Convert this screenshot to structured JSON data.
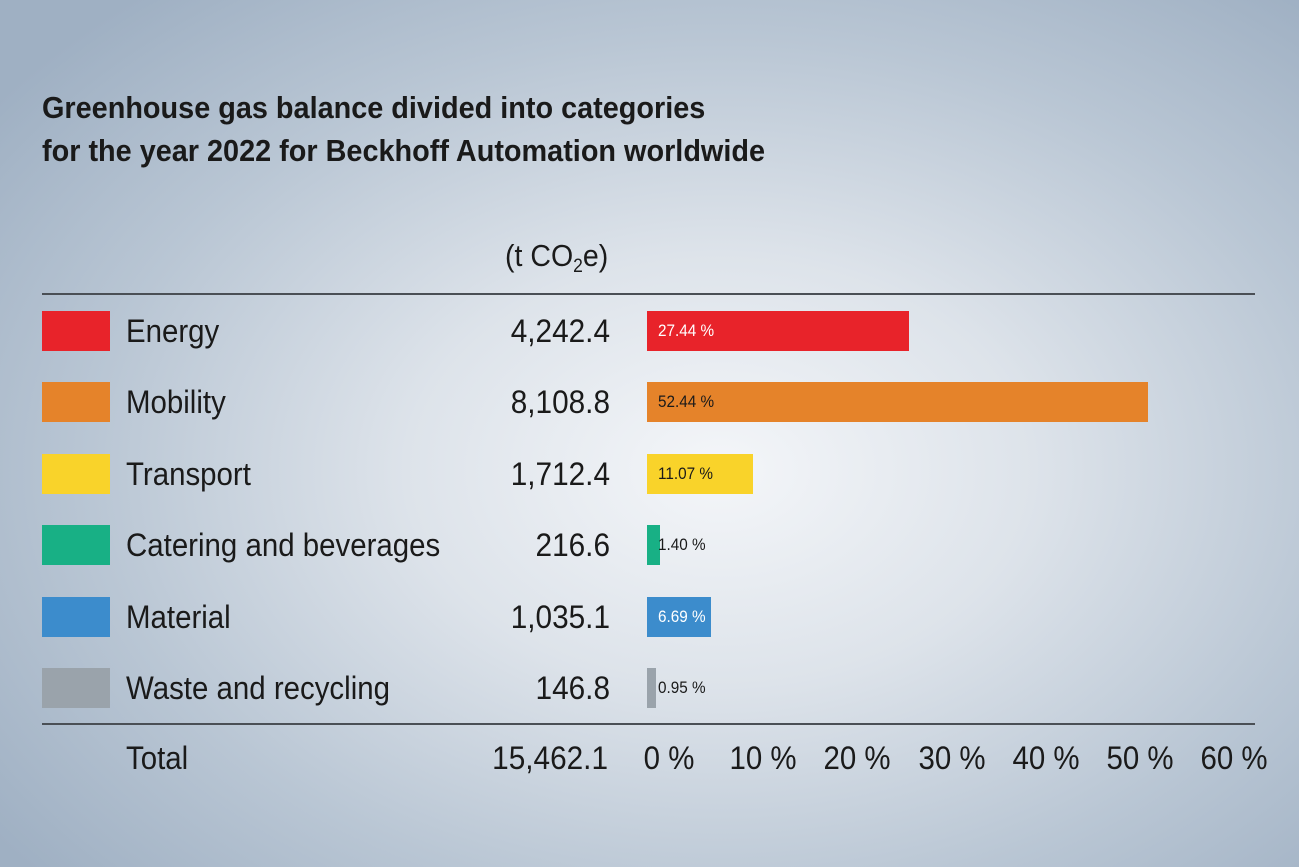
{
  "chart_data": {
    "type": "bar",
    "orientation": "horizontal",
    "title_lines": [
      "Greenhouse gas balance divided into categories",
      "for the year 2022 for Beckhoff Automation worldwide"
    ],
    "unit": {
      "prefix": "(t CO",
      "subscript": "2",
      "suffix": "e)"
    },
    "categories": [
      {
        "name": "Energy",
        "value": "4,242.4",
        "percent": 27.44,
        "percent_label": "27.44 %",
        "color": "#e8232a",
        "label_color": "#ffffff"
      },
      {
        "name": "Mobility",
        "value": "8,108.8",
        "percent": 52.44,
        "percent_label": "52.44 %",
        "color": "#e5832a",
        "label_color": "#1a1a1a"
      },
      {
        "name": "Transport",
        "value": "1,712.4",
        "percent": 11.07,
        "percent_label": "11.07 %",
        "color": "#f9d32a",
        "label_color": "#1a1a1a"
      },
      {
        "name": "Catering and beverages",
        "value": "216.6",
        "percent": 1.4,
        "percent_label": "1.40 %",
        "color": "#18b085",
        "label_color": "#1a1a1a"
      },
      {
        "name": "Material",
        "value": "1,035.1",
        "percent": 6.69,
        "percent_label": "6.69 %",
        "color": "#3c8ccc",
        "label_color": "#ffffff"
      },
      {
        "name": "Waste and recycling",
        "value": "146.8",
        "percent": 0.95,
        "percent_label": "0.95 %",
        "color": "#9aa3ab",
        "label_color": "#1a1a1a"
      }
    ],
    "total": {
      "label": "Total",
      "value": "15,462.1"
    },
    "x_axis": {
      "min": 0,
      "max": 60,
      "ticks": [
        0,
        10,
        20,
        30,
        40,
        50,
        60
      ],
      "tick_labels": [
        "0 %",
        "10 %",
        "20 %",
        "30 %",
        "40 %",
        "50 %",
        "60 %"
      ]
    }
  }
}
